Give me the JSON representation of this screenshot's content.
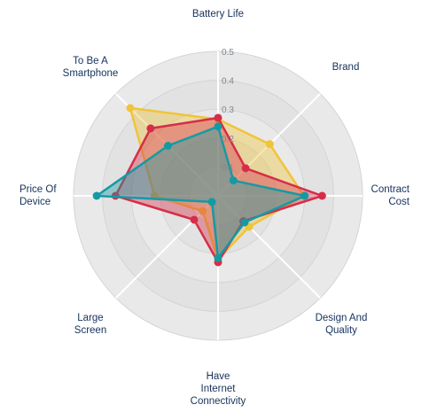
{
  "chart_data": {
    "type": "radar",
    "axes": [
      [
        "Battery Life"
      ],
      [
        "Brand"
      ],
      [
        "Contract",
        "Cost"
      ],
      [
        "Design And",
        "Quality"
      ],
      [
        "Have",
        "Internet",
        "Connectivity"
      ],
      [
        "Large",
        "Screen"
      ],
      [
        "Price Of",
        "Device"
      ],
      [
        "To Be A",
        "Smartphone"
      ]
    ],
    "ticks": [
      "0.1",
      "0.2",
      "0.3",
      "0.4",
      "0.5"
    ],
    "rmax": 0.5,
    "series": [
      {
        "color": "#f0c43a",
        "values": [
          0.265,
          0.253,
          0.297,
          0.152,
          0.22,
          0.075,
          0.22,
          0.43
        ]
      },
      {
        "color": "#d62e48",
        "values": [
          0.27,
          0.135,
          0.36,
          0.124,
          0.23,
          0.117,
          0.355,
          0.33
        ]
      },
      {
        "color": "#149aa5",
        "values": [
          0.24,
          0.075,
          0.3,
          0.13,
          0.215,
          0.03,
          0.42,
          0.245
        ]
      }
    ]
  }
}
